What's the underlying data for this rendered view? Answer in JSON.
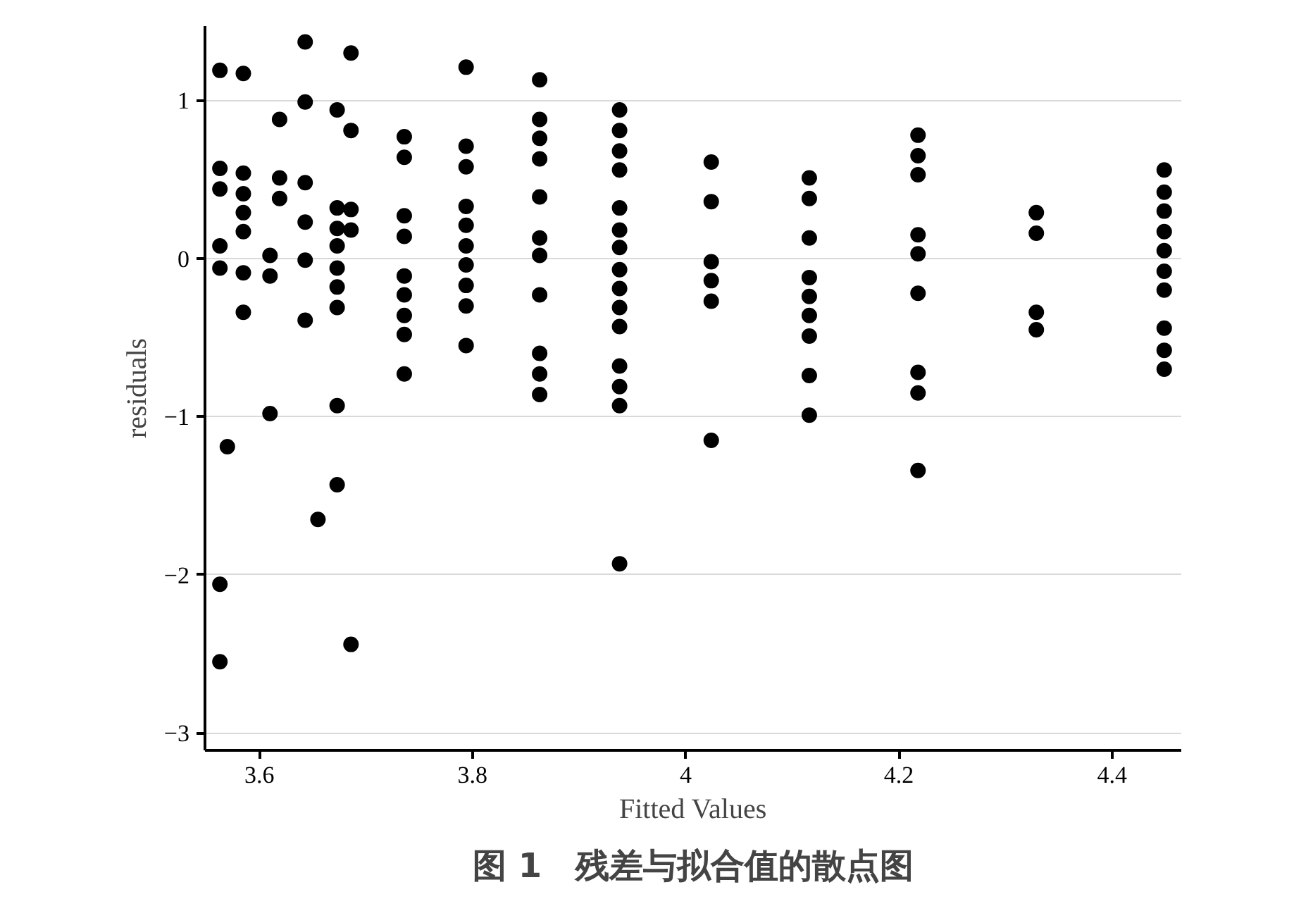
{
  "chart_data": {
    "type": "scatter",
    "title": "图 1　残差与拟合值的散点图",
    "xlabel": "Fitted Values",
    "ylabel": "residuals",
    "series": [
      {
        "color": "#000000",
        "x": [
          3.563,
          3.563,
          3.563,
          3.563,
          3.563,
          3.563,
          3.563,
          3.57,
          3.585,
          3.585,
          3.585,
          3.585,
          3.585,
          3.585,
          3.585,
          3.61,
          3.61,
          3.61,
          3.619,
          3.619,
          3.619,
          3.643,
          3.643,
          3.643,
          3.643,
          3.643,
          3.643,
          3.655,
          3.673,
          3.673,
          3.673,
          3.673,
          3.673,
          3.673,
          3.673,
          3.673,
          3.673,
          3.686,
          3.686,
          3.686,
          3.686,
          3.686
        ],
        "values": [
          1.19,
          0.57,
          0.44,
          0.08,
          -0.06,
          -2.06,
          -2.55,
          -1.19,
          1.17,
          0.54,
          0.41,
          0.29,
          0.17,
          -0.09,
          -0.34,
          0.02,
          -0.11,
          -0.98,
          0.88,
          0.51,
          0.38,
          1.37,
          0.99,
          0.48,
          0.23,
          -0.01,
          -0.39,
          -1.65,
          0.94,
          0.32,
          0.19,
          0.08,
          -0.06,
          -0.18,
          -0.31,
          -0.93,
          -1.43,
          1.3,
          0.81,
          0.31,
          0.18,
          -2.44
        ]
      },
      {
        "color": "#000000",
        "x": [
          3.736,
          3.736,
          3.736,
          3.736,
          3.736,
          3.736,
          3.736,
          3.736,
          3.736,
          3.794,
          3.794,
          3.794,
          3.794,
          3.794,
          3.794,
          3.794,
          3.794,
          3.794,
          3.794,
          3.863,
          3.863,
          3.863,
          3.863,
          3.863,
          3.863,
          3.863,
          3.863,
          3.863,
          3.863,
          3.863
        ],
        "values": [
          0.77,
          0.64,
          0.27,
          0.14,
          -0.11,
          -0.23,
          -0.36,
          -0.48,
          -0.73,
          1.21,
          0.71,
          0.58,
          0.33,
          0.21,
          0.08,
          -0.04,
          -0.17,
          -0.3,
          -0.55,
          1.13,
          0.88,
          0.76,
          0.63,
          0.39,
          0.13,
          0.02,
          -0.23,
          -0.6,
          -0.73,
          -0.86
        ]
      },
      {
        "color": "#000000",
        "x": [
          3.938,
          3.938,
          3.938,
          3.938,
          3.938,
          3.938,
          3.938,
          3.938,
          3.938,
          3.938,
          3.938,
          3.938,
          3.938,
          3.938,
          3.938,
          4.024,
          4.024,
          4.024,
          4.024,
          4.024,
          4.024
        ],
        "values": [
          0.94,
          0.81,
          0.68,
          0.56,
          0.32,
          0.18,
          0.07,
          -0.07,
          -0.19,
          -0.31,
          -0.43,
          -0.68,
          -0.81,
          -0.93,
          -1.93,
          0.61,
          0.36,
          -0.02,
          -0.14,
          -0.27,
          -1.15
        ]
      },
      {
        "color": "#000000",
        "x": [
          4.116,
          4.116,
          4.116,
          4.116,
          4.116,
          4.116,
          4.116,
          4.116,
          4.116,
          4.218,
          4.218,
          4.218,
          4.218,
          4.218,
          4.218,
          4.218,
          4.218,
          4.218,
          4.329,
          4.329,
          4.329,
          4.329,
          4.449,
          4.449,
          4.449,
          4.449,
          4.449,
          4.449,
          4.449,
          4.449,
          4.449,
          4.449
        ],
        "values": [
          0.51,
          0.38,
          0.13,
          -0.12,
          -0.24,
          -0.36,
          -0.49,
          -0.74,
          -0.99,
          0.78,
          0.65,
          0.53,
          0.15,
          0.03,
          -0.22,
          -0.72,
          -0.85,
          -1.34,
          0.29,
          0.16,
          -0.34,
          -0.45,
          0.56,
          0.42,
          0.3,
          0.17,
          0.05,
          -0.08,
          -0.2,
          -0.44,
          -0.58,
          -0.7
        ]
      }
    ],
    "marker": "circle",
    "grid": "y",
    "xlim": [
      3.549,
      4.465
    ],
    "ylim": [
      -3.11,
      1.47
    ],
    "xticks": [
      3.6,
      3.8,
      4,
      4.2,
      4.4
    ],
    "yticks": [
      {
        "value": -3,
        "label": "−3"
      },
      {
        "value": -2,
        "label": "−2"
      },
      {
        "value": -1,
        "label": "−1"
      },
      0,
      1
    ]
  }
}
